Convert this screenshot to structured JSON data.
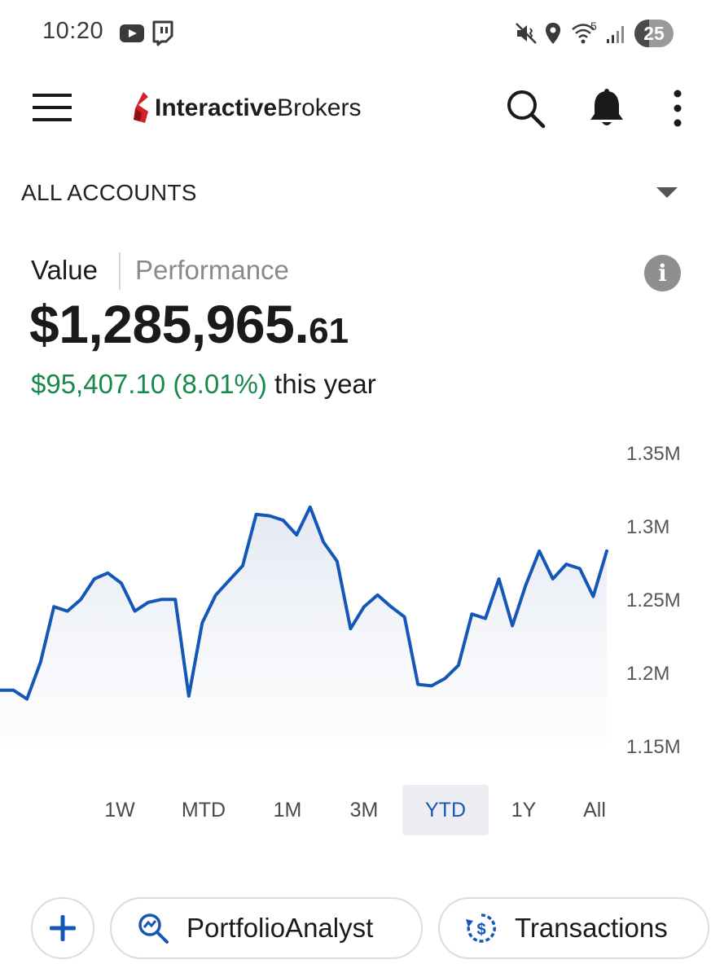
{
  "status_bar": {
    "time": "10:20",
    "battery": "25",
    "wifi_badge": "5"
  },
  "app_bar": {
    "logo_bold": "Interactive",
    "logo_regular": "Brokers",
    "icons": [
      "menu-icon",
      "search-icon",
      "bell-icon",
      "more-vert-icon"
    ]
  },
  "account_selector": {
    "label": "ALL ACCOUNTS"
  },
  "summary": {
    "tab_value": "Value",
    "tab_performance": "Performance",
    "info_glyph": "i",
    "value_main": "$1,285,965.",
    "value_cents": "61",
    "change_amount": "$95,407.10 (8.01%)",
    "change_suffix": " this year",
    "colors": {
      "positive": "#17894a",
      "accent": "#1457b7"
    }
  },
  "chart_data": {
    "type": "area",
    "ylim": [
      1.15,
      1.35
    ],
    "ytick_labels": [
      "1.35M",
      "1.3M",
      "1.25M",
      "1.2M",
      "1.15M"
    ],
    "yticks": [
      1.35,
      1.3,
      1.25,
      1.2,
      1.15
    ],
    "series": [
      {
        "values": [
          1.189,
          1.189,
          1.183,
          1.208,
          1.246,
          1.243,
          1.251,
          1.265,
          1.269,
          1.262,
          1.243,
          1.249,
          1.251,
          1.251,
          1.185,
          1.235,
          1.254,
          1.264,
          1.274,
          1.309,
          1.308,
          1.305,
          1.295,
          1.314,
          1.29,
          1.277,
          1.231,
          1.246,
          1.254,
          1.246,
          1.239,
          1.193,
          1.192,
          1.197,
          1.206,
          1.241,
          1.238,
          1.265,
          1.233,
          1.261,
          1.284,
          1.265,
          1.275,
          1.272,
          1.253,
          1.284
        ]
      }
    ],
    "line_color": "#1457b7"
  },
  "ranges": {
    "options": [
      "1W",
      "MTD",
      "1M",
      "3M",
      "YTD",
      "1Y",
      "All"
    ],
    "selected": "YTD"
  },
  "actions": {
    "add_glyph": "+",
    "portfolio_analyst": "PortfolioAnalyst",
    "transactions": "Transactions"
  }
}
